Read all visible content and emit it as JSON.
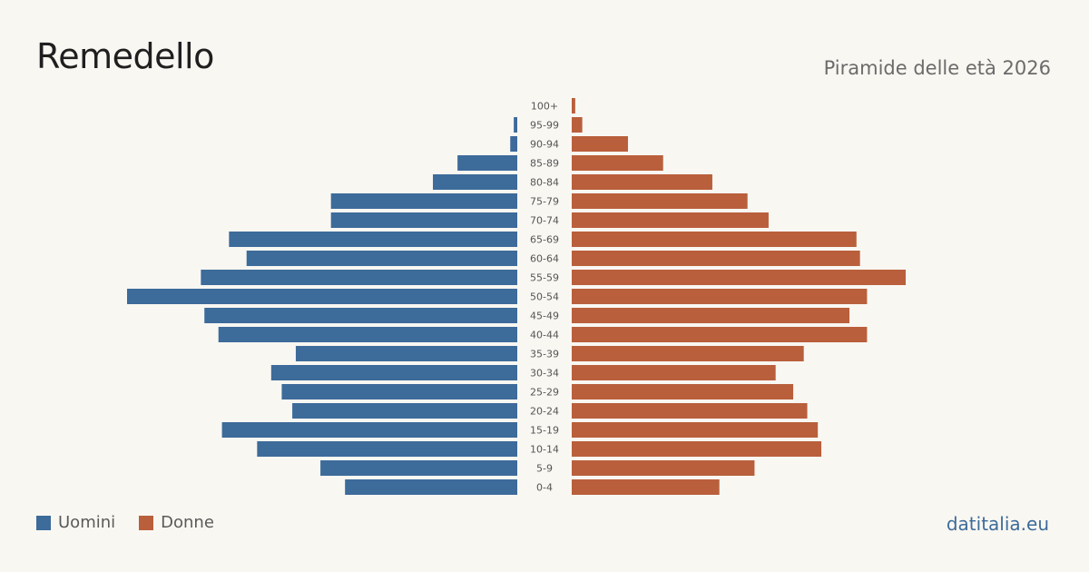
{
  "header": {
    "title": "Remedello",
    "subtitle": "Piramide delle età 2026"
  },
  "legend": {
    "men_label": "Uomini",
    "women_label": "Donne"
  },
  "footer": {
    "source": "datitalia.eu"
  },
  "colors": {
    "men": "#3d6b9a",
    "women": "#b95f3c",
    "background": "#f9f7f2"
  },
  "chart_data": {
    "type": "bar",
    "orientation": "horizontal-pyramid",
    "categories": [
      "100+",
      "95-99",
      "90-94",
      "85-89",
      "80-84",
      "75-79",
      "70-74",
      "65-69",
      "60-64",
      "55-59",
      "50-54",
      "45-49",
      "40-44",
      "35-39",
      "30-34",
      "25-29",
      "20-24",
      "15-19",
      "10-14",
      "5-9",
      "0-4"
    ],
    "series": [
      {
        "name": "Uomini",
        "values": [
          0,
          1,
          2,
          17,
          24,
          53,
          53,
          82,
          77,
          90,
          111,
          89,
          85,
          63,
          70,
          67,
          64,
          84,
          74,
          56,
          49
        ]
      },
      {
        "name": "Donne",
        "values": [
          1,
          3,
          16,
          26,
          40,
          50,
          56,
          81,
          82,
          95,
          84,
          79,
          84,
          66,
          58,
          63,
          67,
          70,
          71,
          52,
          42
        ]
      }
    ],
    "legend_position": "bottom-left",
    "grid": false,
    "xlim": [
      0,
      111
    ]
  }
}
